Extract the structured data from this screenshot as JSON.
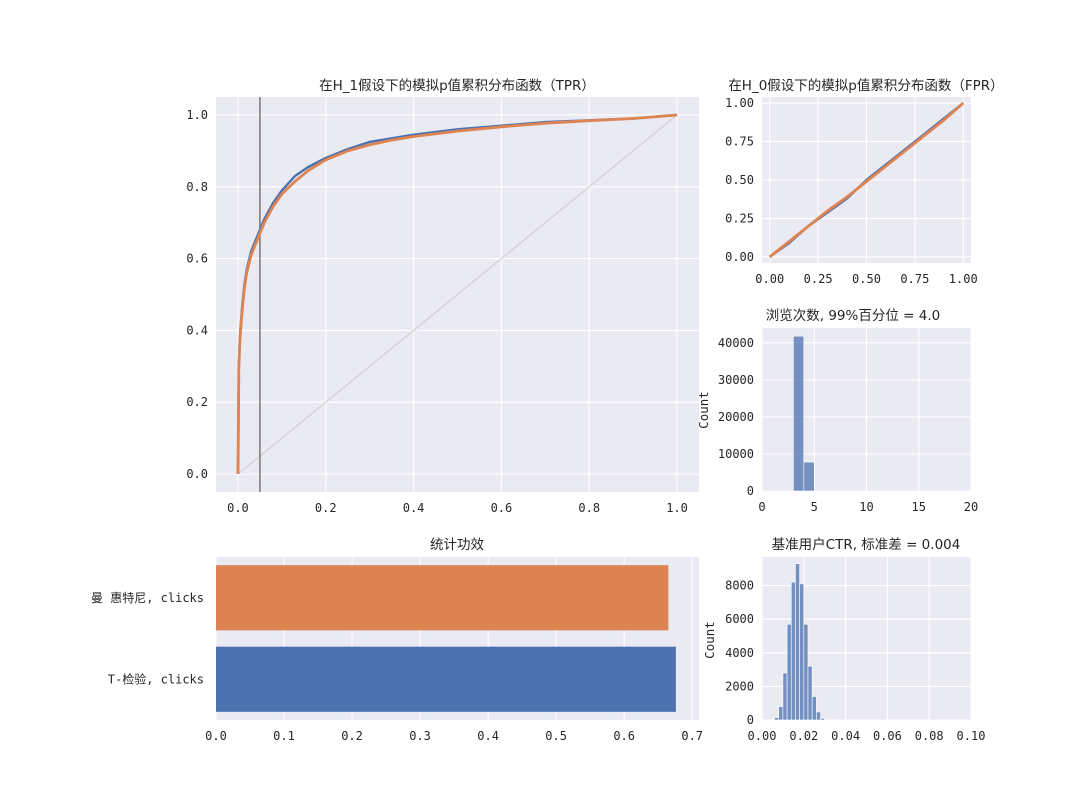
{
  "colors": {
    "blue": "#4c72b0",
    "orange": "#dd8452",
    "background": "#eaeaf2",
    "grid": "#ffffff",
    "diagonal": "#d0d0d0",
    "vline": "#7f7f7f"
  },
  "chart_data": [
    {
      "id": "tpr",
      "type": "line",
      "title": "在H_1假设下的模拟p值累积分布函数（TPR）",
      "xlim": [
        -0.05,
        1.05
      ],
      "ylim": [
        -0.05,
        1.05
      ],
      "xticks": [
        0.0,
        0.2,
        0.4,
        0.6,
        0.8,
        1.0
      ],
      "xtick_labels": [
        "0.0",
        "0.2",
        "0.4",
        "0.6",
        "0.8",
        "1.0"
      ],
      "yticks": [
        0.0,
        0.2,
        0.4,
        0.6,
        0.8,
        1.0
      ],
      "ytick_labels": [
        "0.0",
        "0.2",
        "0.4",
        "0.6",
        "0.8",
        "1.0"
      ],
      "vline_x": 0.05,
      "diagonal": [
        [
          0,
          0
        ],
        [
          1,
          1
        ]
      ],
      "series": [
        {
          "color": "blue",
          "x": [
            0.0,
            0.001,
            0.002,
            0.004,
            0.006,
            0.01,
            0.015,
            0.02,
            0.03,
            0.04,
            0.05,
            0.06,
            0.08,
            0.1,
            0.13,
            0.16,
            0.2,
            0.25,
            0.3,
            0.35,
            0.4,
            0.5,
            0.6,
            0.7,
            0.8,
            0.9,
            1.0
          ],
          "y": [
            0.0,
            0.14,
            0.3,
            0.37,
            0.41,
            0.47,
            0.53,
            0.57,
            0.62,
            0.65,
            0.68,
            0.71,
            0.755,
            0.79,
            0.83,
            0.855,
            0.88,
            0.905,
            0.925,
            0.935,
            0.945,
            0.96,
            0.97,
            0.98,
            0.985,
            0.99,
            1.0
          ]
        },
        {
          "color": "orange",
          "x": [
            0.0,
            0.001,
            0.002,
            0.004,
            0.006,
            0.01,
            0.015,
            0.02,
            0.03,
            0.04,
            0.05,
            0.06,
            0.08,
            0.1,
            0.13,
            0.16,
            0.2,
            0.25,
            0.3,
            0.35,
            0.4,
            0.5,
            0.6,
            0.7,
            0.8,
            0.9,
            1.0
          ],
          "y": [
            0.0,
            0.13,
            0.29,
            0.36,
            0.4,
            0.46,
            0.52,
            0.56,
            0.61,
            0.64,
            0.67,
            0.7,
            0.745,
            0.78,
            0.815,
            0.845,
            0.875,
            0.9,
            0.917,
            0.93,
            0.94,
            0.955,
            0.967,
            0.977,
            0.984,
            0.99,
            1.0
          ]
        }
      ]
    },
    {
      "id": "fpr",
      "type": "line",
      "title": "在H_0假设下的模拟p值累积分布函数（FPR）",
      "xlim": [
        -0.04,
        1.04
      ],
      "ylim": [
        -0.04,
        1.04
      ],
      "xticks": [
        0.0,
        0.25,
        0.5,
        0.75,
        1.0
      ],
      "xtick_labels": [
        "0.00",
        "0.25",
        "0.50",
        "0.75",
        "1.00"
      ],
      "yticks": [
        0.0,
        0.25,
        0.5,
        0.75,
        1.0
      ],
      "ytick_labels": [
        "0.00",
        "0.25",
        "0.50",
        "0.75",
        "1.00"
      ],
      "series": [
        {
          "color": "blue",
          "x": [
            0.0,
            0.1,
            0.2,
            0.3,
            0.4,
            0.5,
            0.6,
            0.7,
            0.8,
            0.9,
            1.0
          ],
          "y": [
            0.0,
            0.09,
            0.2,
            0.29,
            0.38,
            0.5,
            0.6,
            0.7,
            0.8,
            0.9,
            1.0
          ]
        },
        {
          "color": "orange",
          "x": [
            0.0,
            0.1,
            0.2,
            0.3,
            0.4,
            0.5,
            0.6,
            0.7,
            0.8,
            0.9,
            1.0
          ],
          "y": [
            0.0,
            0.1,
            0.2,
            0.3,
            0.39,
            0.49,
            0.59,
            0.69,
            0.79,
            0.89,
            1.0
          ]
        }
      ]
    },
    {
      "id": "views",
      "type": "bar",
      "title": "浏览次数, 99%百分位 = 4.0",
      "ylabel": "Count",
      "xlim": [
        0,
        20
      ],
      "ylim": [
        0,
        44000
      ],
      "xticks": [
        0,
        5,
        10,
        15,
        20
      ],
      "xtick_labels": [
        "0",
        "5",
        "10",
        "15",
        "20"
      ],
      "yticks": [
        0,
        10000,
        20000,
        30000,
        40000
      ],
      "ytick_labels": [
        "0",
        "10000",
        "20000",
        "30000",
        "40000"
      ],
      "bars": [
        {
          "x0": 3.0,
          "x1": 4.0,
          "value": 41800
        },
        {
          "x0": 4.0,
          "x1": 5.0,
          "value": 7800
        }
      ],
      "bar_color": "blue"
    },
    {
      "id": "ctr",
      "type": "bar",
      "title": "基准用户CTR, 标准差 = 0.004",
      "ylabel": "Count",
      "xlim": [
        0.0,
        0.1
      ],
      "ylim": [
        0,
        9700
      ],
      "xticks": [
        0.0,
        0.02,
        0.04,
        0.06,
        0.08,
        0.1
      ],
      "xtick_labels": [
        "0.00",
        "0.02",
        "0.04",
        "0.06",
        "0.08",
        "0.10"
      ],
      "yticks": [
        0,
        2000,
        4000,
        6000,
        8000
      ],
      "ytick_labels": [
        "0",
        "2000",
        "4000",
        "6000",
        "8000"
      ],
      "bin_start": 0.006,
      "bin_width": 0.002,
      "values": [
        150,
        800,
        2800,
        5700,
        8200,
        9300,
        8100,
        5700,
        3200,
        1400,
        480,
        100
      ],
      "bar_color": "blue"
    },
    {
      "id": "power",
      "type": "bar",
      "orientation": "horizontal",
      "title": "统计功效",
      "categories": [
        "曼 惠特尼, clicks",
        "T-检验, clicks"
      ],
      "values": [
        0.665,
        0.676
      ],
      "colors": [
        "orange",
        "blue"
      ],
      "xlim": [
        0.0,
        0.71
      ],
      "xticks": [
        0.0,
        0.1,
        0.2,
        0.3,
        0.4,
        0.5,
        0.6,
        0.7
      ],
      "xtick_labels": [
        "0.0",
        "0.1",
        "0.2",
        "0.3",
        "0.4",
        "0.5",
        "0.6",
        "0.7"
      ]
    }
  ]
}
